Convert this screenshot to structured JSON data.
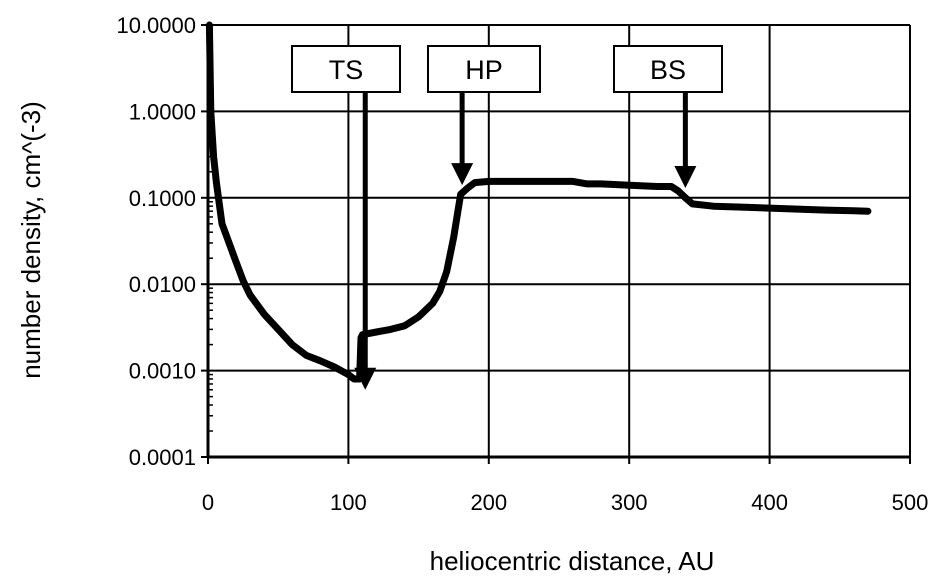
{
  "chart_data": {
    "type": "line",
    "xlabel": "heliocentric distance, AU",
    "ylabel": "number density, cm^(-3)",
    "xlim": [
      0,
      500
    ],
    "ylim": [
      0.0001,
      10
    ],
    "yscale": "log",
    "grid": true,
    "x_ticks": [
      0,
      100,
      200,
      300,
      400,
      500
    ],
    "x_tick_labels": [
      "0",
      "100",
      "200",
      "300",
      "400",
      "500"
    ],
    "y_ticks": [
      0.0001,
      0.001,
      0.01,
      0.1,
      1,
      10
    ],
    "y_tick_labels": [
      "0.0001",
      "0.0010",
      "0.0100",
      "0.1000",
      "1.0000",
      "10.0000"
    ],
    "series": [
      {
        "x": [
          1,
          2,
          4,
          6,
          10,
          15,
          20,
          25,
          30,
          40,
          50,
          60,
          70,
          80,
          90,
          100,
          104,
          108,
          109,
          110,
          120,
          130,
          140,
          150,
          160,
          165,
          170,
          175,
          178,
          180,
          185,
          190,
          200,
          220,
          240,
          260,
          270,
          280,
          300,
          320,
          330,
          335,
          340,
          345,
          360,
          380,
          400,
          420,
          440,
          460,
          470
        ],
        "y": [
          10,
          1.0,
          0.3,
          0.15,
          0.05,
          0.03,
          0.018,
          0.011,
          0.0075,
          0.0045,
          0.003,
          0.002,
          0.0015,
          0.0013,
          0.0011,
          0.0009,
          0.0008,
          0.0008,
          0.0024,
          0.0026,
          0.0028,
          0.003,
          0.0033,
          0.0042,
          0.006,
          0.0082,
          0.014,
          0.035,
          0.07,
          0.11,
          0.13,
          0.15,
          0.155,
          0.155,
          0.155,
          0.155,
          0.145,
          0.145,
          0.14,
          0.135,
          0.135,
          0.12,
          0.1,
          0.085,
          0.08,
          0.078,
          0.076,
          0.074,
          0.072,
          0.071,
          0.07
        ]
      }
    ],
    "annotations": [
      {
        "label": "TS",
        "x": 112,
        "y": 0.0006
      },
      {
        "label": "HP",
        "x": 181,
        "y": 0.14
      },
      {
        "label": "BS",
        "x": 340,
        "y": 0.13
      }
    ]
  }
}
